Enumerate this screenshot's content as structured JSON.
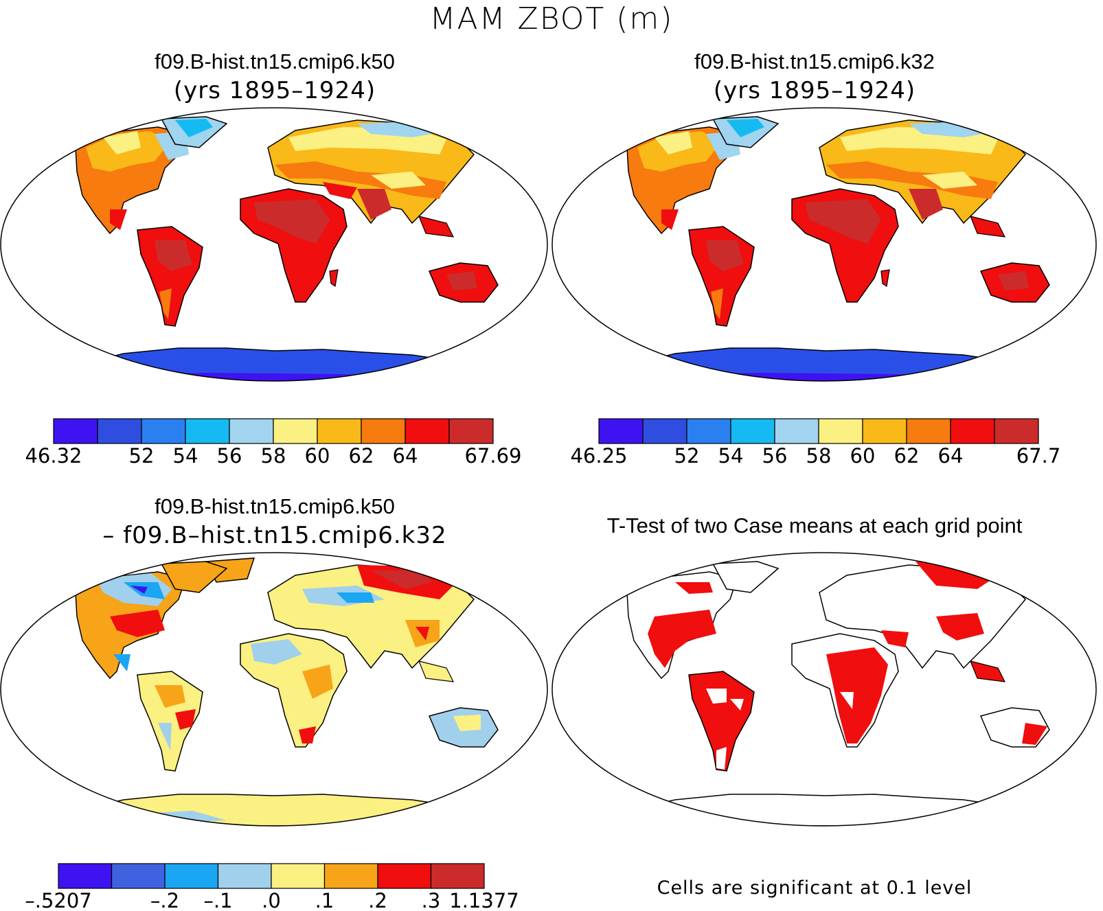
{
  "figure": {
    "title": "MAM  ZBOT (m)"
  },
  "panels": [
    {
      "id": "case1",
      "title": "f09.B-hist.tn15.cmip6.k50",
      "subtitle": "(yrs 1895–1924)",
      "colorbar": {
        "colors": [
          "#3f12f2",
          "#2f4ee0",
          "#2a80f0",
          "#15baf2",
          "#a0d4ef",
          "#fbf082",
          "#f9b918",
          "#f77b0e",
          "#f00e0e",
          "#cc2b2b"
        ],
        "labels": [
          "46.32",
          "",
          "52",
          "54",
          "56",
          "58",
          "60",
          "62",
          "64",
          "",
          "67.69"
        ]
      }
    },
    {
      "id": "case2",
      "title": "f09.B-hist.tn15.cmip6.k32",
      "subtitle": "(yrs 1895–1924)",
      "colorbar": {
        "colors": [
          "#3f12f2",
          "#2f4ee0",
          "#2a80f0",
          "#15baf2",
          "#a0d4ef",
          "#fbf082",
          "#f9b918",
          "#f77b0e",
          "#f00e0e",
          "#cc2b2b"
        ],
        "labels": [
          "46.25",
          "",
          "52",
          "54",
          "56",
          "58",
          "60",
          "62",
          "64",
          "",
          "67.7"
        ]
      }
    },
    {
      "id": "difference",
      "title": "f09.B-hist.tn15.cmip6.k50",
      "subtitle": "– f09.B–hist.tn15.cmip6.k32",
      "colorbar": {
        "colors": [
          "#3f12f2",
          "#3f62e0",
          "#1aa6f2",
          "#a0d0ec",
          "#fbf082",
          "#f7a418",
          "#f00e0e",
          "#cc2b2b"
        ],
        "labels": [
          "–.5207",
          "",
          "–.2",
          "–.1",
          ".0",
          ".1",
          ".2",
          ".3",
          "1.1377"
        ]
      }
    },
    {
      "id": "ttest",
      "title": "T-Test of two Case means at each grid point",
      "note": "Cells are significant at 0.1 level"
    }
  ]
}
